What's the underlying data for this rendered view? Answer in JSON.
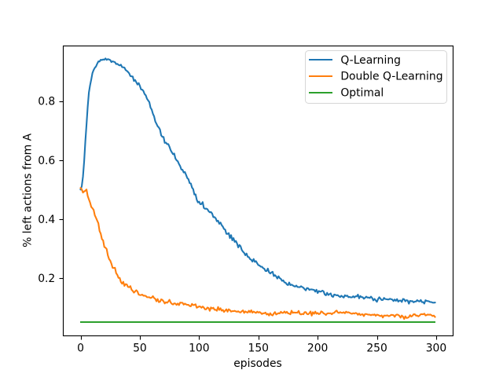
{
  "chart_data": {
    "type": "line",
    "title": "",
    "xlabel": "episodes",
    "ylabel": "% left actions from A",
    "xlim": [
      -14.95,
      313.95
    ],
    "ylim": [
      0.0053,
      0.9887
    ],
    "x_ticks": [
      0,
      50,
      100,
      150,
      200,
      250,
      300
    ],
    "x_tick_labels": [
      "0",
      "50",
      "100",
      "150",
      "200",
      "250",
      "300"
    ],
    "y_ticks": [
      0.2,
      0.4,
      0.6,
      0.8
    ],
    "y_tick_labels": [
      "0.2",
      "0.4",
      "0.6",
      "0.8"
    ],
    "grid": false,
    "legend_position": "upper right",
    "x_start": 0,
    "x_step": 1,
    "series": [
      {
        "name": "Q-Learning",
        "color": "#1f77b4",
        "values": [
          0.5,
          0.5116,
          0.5436,
          0.5954,
          0.6627,
          0.7203,
          0.7803,
          0.8284,
          0.8532,
          0.8728,
          0.8946,
          0.9048,
          0.9123,
          0.9168,
          0.9259,
          0.9339,
          0.9336,
          0.9396,
          0.9384,
          0.9406,
          0.9395,
          0.944,
          0.9391,
          0.9417,
          0.9405,
          0.9387,
          0.9316,
          0.9343,
          0.9329,
          0.9312,
          0.9249,
          0.9258,
          0.9223,
          0.9203,
          0.923,
          0.9148,
          0.9139,
          0.9132,
          0.9048,
          0.902,
          0.8984,
          0.8935,
          0.8842,
          0.8834,
          0.8827,
          0.8676,
          0.8711,
          0.8634,
          0.8556,
          0.8607,
          0.8514,
          0.839,
          0.8383,
          0.8338,
          0.8234,
          0.819,
          0.8075,
          0.8018,
          0.7962,
          0.7775,
          0.7708,
          0.7568,
          0.7481,
          0.7308,
          0.7227,
          0.7143,
          0.7103,
          0.7032,
          0.6833,
          0.6783,
          0.6781,
          0.658,
          0.6588,
          0.6539,
          0.6541,
          0.6447,
          0.6329,
          0.626,
          0.6197,
          0.6219,
          0.6051,
          0.5989,
          0.5956,
          0.5865,
          0.5794,
          0.5679,
          0.5668,
          0.5578,
          0.5593,
          0.5496,
          0.5389,
          0.535,
          0.5218,
          0.5208,
          0.5068,
          0.5014,
          0.4832,
          0.4837,
          0.4653,
          0.4563,
          0.459,
          0.4503,
          0.451,
          0.4575,
          0.4374,
          0.4347,
          0.4355,
          0.4335,
          0.4265,
          0.4228,
          0.4237,
          0.4187,
          0.4063,
          0.4068,
          0.4027,
          0.3924,
          0.3944,
          0.3839,
          0.3885,
          0.3797,
          0.3745,
          0.3663,
          0.3641,
          0.3499,
          0.3497,
          0.3525,
          0.3354,
          0.3456,
          0.3279,
          0.3356,
          0.3228,
          0.3258,
          0.3175,
          0.304,
          0.3122,
          0.3078,
          0.2953,
          0.2894,
          0.2854,
          0.2774,
          0.2834,
          0.2721,
          0.271,
          0.2642,
          0.2619,
          0.2559,
          0.2646,
          0.2552,
          0.2574,
          0.2501,
          0.2439,
          0.2427,
          0.2387,
          0.2385,
          0.234,
          0.2316,
          0.2241,
          0.224,
          0.2323,
          0.2196,
          0.2155,
          0.2193,
          0.2216,
          0.207,
          0.21,
          0.2058,
          0.1985,
          0.2063,
          0.2,
          0.1972,
          0.1905,
          0.1924,
          0.1854,
          0.1845,
          0.1785,
          0.1764,
          0.1851,
          0.1762,
          0.1781,
          0.1755,
          0.1727,
          0.1713,
          0.1748,
          0.17,
          0.1696,
          0.1692,
          0.1727,
          0.1697,
          0.1674,
          0.1626,
          0.1584,
          0.1664,
          0.1654,
          0.1601,
          0.1617,
          0.1616,
          0.1609,
          0.1602,
          0.154,
          0.1607,
          0.1493,
          0.1564,
          0.1541,
          0.1547,
          0.1576,
          0.1552,
          0.1445,
          0.1417,
          0.1503,
          0.1427,
          0.1458,
          0.1483,
          0.1385,
          0.1362,
          0.1445,
          0.1432,
          0.1417,
          0.1423,
          0.1386,
          0.1358,
          0.1404,
          0.1371,
          0.1343,
          0.1418,
          0.1394,
          0.1408,
          0.1354,
          0.1363,
          0.1347,
          0.1349,
          0.1385,
          0.1347,
          0.1385,
          0.1382,
          0.1441,
          0.1314,
          0.1394,
          0.1356,
          0.1356,
          0.1301,
          0.1333,
          0.1373,
          0.134,
          0.1343,
          0.1326,
          0.1374,
          0.1328,
          0.1246,
          0.1296,
          0.1246,
          0.1197,
          0.129,
          0.1352,
          0.1303,
          0.1256,
          0.126,
          0.133,
          0.1292,
          0.1285,
          0.1277,
          0.1277,
          0.13,
          0.1288,
          0.1272,
          0.1224,
          0.1275,
          0.123,
          0.1289,
          0.1203,
          0.1239,
          0.1241,
          0.1192,
          0.1295,
          0.1283,
          0.1214,
          0.1254,
          0.1239,
          0.1133,
          0.123,
          0.1218,
          0.1221,
          0.118,
          0.1206,
          0.1207,
          0.1253,
          0.1222,
          0.1208,
          0.1259,
          0.1185,
          0.1189,
          0.1138,
          0.1251,
          0.1228,
          0.1223,
          0.1211,
          0.1189,
          0.1189,
          0.1169,
          0.1167,
          0.1172
        ]
      },
      {
        "name": "Double Q-Learning",
        "color": "#ff7f0e",
        "values": [
          0.505,
          0.5004,
          0.4896,
          0.4934,
          0.4961,
          0.5,
          0.4781,
          0.4667,
          0.4559,
          0.441,
          0.4366,
          0.4313,
          0.4126,
          0.404,
          0.3947,
          0.3857,
          0.3596,
          0.3506,
          0.3319,
          0.3278,
          0.3056,
          0.303,
          0.2986,
          0.2772,
          0.2647,
          0.2592,
          0.249,
          0.2349,
          0.2344,
          0.2351,
          0.2167,
          0.2109,
          0.2008,
          0.2011,
          0.1866,
          0.1811,
          0.1876,
          0.1735,
          0.1795,
          0.1787,
          0.1701,
          0.169,
          0.173,
          0.1607,
          0.1565,
          0.1507,
          0.1548,
          0.159,
          0.1546,
          0.1442,
          0.1427,
          0.1425,
          0.1442,
          0.1404,
          0.1406,
          0.1394,
          0.1354,
          0.1352,
          0.135,
          0.1326,
          0.1341,
          0.1389,
          0.1327,
          0.1296,
          0.1215,
          0.1292,
          0.1186,
          0.1198,
          0.1279,
          0.1262,
          0.1215,
          0.1141,
          0.1185,
          0.1164,
          0.1208,
          0.1265,
          0.1175,
          0.1128,
          0.1106,
          0.1145,
          0.1135,
          0.1093,
          0.1139,
          0.1086,
          0.1172,
          0.1167,
          0.1166,
          0.1102,
          0.1137,
          0.1109,
          0.1096,
          0.1095,
          0.1054,
          0.1045,
          0.1128,
          0.1085,
          0.1093,
          0.1113,
          0.0996,
          0.1018,
          0.1041,
          0.1035,
          0.0995,
          0.1038,
          0.1001,
          0.0941,
          0.0945,
          0.1003,
          0.0984,
          0.0892,
          0.1006,
          0.0973,
          0.0996,
          0.0928,
          0.0927,
          0.0894,
          0.1022,
          0.0921,
          0.0981,
          0.0897,
          0.0924,
          0.0855,
          0.0899,
          0.0945,
          0.0863,
          0.0944,
          0.0915,
          0.0864,
          0.0881,
          0.088,
          0.0892,
          0.0873,
          0.086,
          0.0876,
          0.0848,
          0.0837,
          0.0878,
          0.0908,
          0.0821,
          0.0872,
          0.0847,
          0.0833,
          0.0895,
          0.0844,
          0.0912,
          0.0829,
          0.0867,
          0.0842,
          0.0821,
          0.0863,
          0.0833,
          0.0853,
          0.0824,
          0.0783,
          0.081,
          0.0809,
          0.0834,
          0.0767,
          0.0792,
          0.0733,
          0.0812,
          0.0755,
          0.0736,
          0.0801,
          0.0849,
          0.0768,
          0.0792,
          0.0812,
          0.0805,
          0.0861,
          0.0822,
          0.0825,
          0.0869,
          0.082,
          0.0859,
          0.0808,
          0.0797,
          0.0773,
          0.0898,
          0.0821,
          0.0838,
          0.0828,
          0.0833,
          0.0828,
          0.089,
          0.0788,
          0.0769,
          0.0787,
          0.0775,
          0.0846,
          0.0848,
          0.0788,
          0.0774,
          0.081,
          0.0871,
          0.0729,
          0.0844,
          0.0791,
          0.0865,
          0.0793,
          0.082,
          0.0778,
          0.0795,
          0.0873,
          0.0851,
          0.0806,
          0.0787,
          0.075,
          0.0799,
          0.081,
          0.0807,
          0.0808,
          0.0776,
          0.0816,
          0.0823,
          0.0874,
          0.09,
          0.0837,
          0.0819,
          0.0847,
          0.0829,
          0.0824,
          0.0846,
          0.081,
          0.0864,
          0.0836,
          0.0844,
          0.0825,
          0.0803,
          0.0791,
          0.0812,
          0.0798,
          0.082,
          0.0808,
          0.0757,
          0.0801,
          0.0749,
          0.0769,
          0.0776,
          0.0713,
          0.0783,
          0.0783,
          0.0771,
          0.0761,
          0.0762,
          0.0741,
          0.0763,
          0.0752,
          0.0771,
          0.0724,
          0.0763,
          0.0751,
          0.0731,
          0.0713,
          0.0738,
          0.0665,
          0.0733,
          0.0728,
          0.0732,
          0.0739,
          0.0709,
          0.0724,
          0.0756,
          0.0751,
          0.0745,
          0.0688,
          0.0751,
          0.0766,
          0.0755,
          0.0723,
          0.066,
          0.0733,
          0.0694,
          0.0615,
          0.0706,
          0.0648,
          0.0656,
          0.068,
          0.0745,
          0.0698,
          0.0723,
          0.0776,
          0.0776,
          0.0728,
          0.0731,
          0.0705,
          0.0732,
          0.0775,
          0.0779,
          0.0772,
          0.0798,
          0.0734,
          0.075,
          0.0768,
          0.0757,
          0.0768,
          0.0742,
          0.0715,
          0.0733,
          0.0686
        ]
      },
      {
        "name": "Optimal",
        "color": "#2ca02c",
        "values": "constant",
        "constant": 0.05,
        "n": 300
      }
    ]
  },
  "legend": {
    "items": [
      {
        "label": "Q-Learning",
        "color": "#1f77b4"
      },
      {
        "label": "Double Q-Learning",
        "color": "#ff7f0e"
      },
      {
        "label": "Optimal",
        "color": "#2ca02c"
      }
    ]
  },
  "colors": {
    "background": "#ffffff",
    "axes": "#000000",
    "legend_edge": "#cccccc",
    "text": "#000000"
  }
}
